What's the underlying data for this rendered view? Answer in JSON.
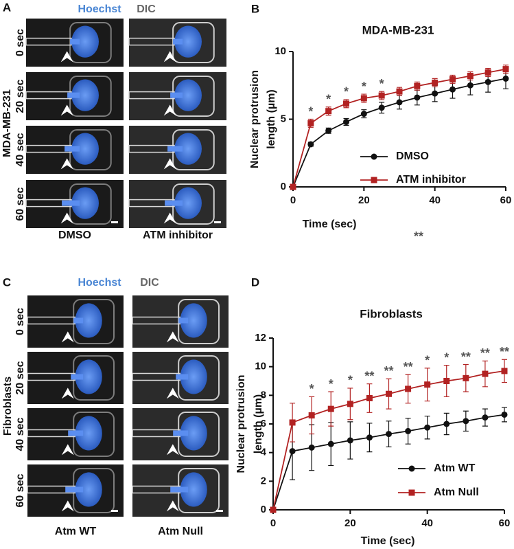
{
  "figure": {
    "panel_a": {
      "label": "A",
      "channels": [
        "Hoechst",
        "DIC"
      ],
      "times": [
        "0 sec",
        "20 sec",
        "40 sec",
        "60 sec"
      ],
      "cell_line": "MDA-MB-231",
      "conditions": [
        "DMSO",
        "ATM inhibitor"
      ]
    },
    "panel_c": {
      "label": "C",
      "channels": [
        "Hoechst",
        "DIC"
      ],
      "times": [
        "0 sec",
        "20 sec",
        "40 sec",
        "60 sec"
      ],
      "cell_line": "Fibroblasts",
      "conditions": [
        "Atm WT",
        "Atm Null"
      ]
    }
  },
  "chart_data": [
    {
      "type": "line",
      "panel_label": "B",
      "title": "MDA-MB-231",
      "xlabel": "Time (sec)",
      "ylabel": [
        "Nuclear protrusion",
        "length (µm)"
      ],
      "x": [
        0,
        5,
        10,
        15,
        20,
        25,
        30,
        35,
        40,
        45,
        50,
        55,
        60
      ],
      "series": [
        {
          "name": "DMSO",
          "color": "#111111",
          "marker": "circle",
          "values": [
            0,
            3.15,
            4.15,
            4.8,
            5.4,
            5.85,
            6.25,
            6.6,
            6.9,
            7.2,
            7.5,
            7.75,
            8.0
          ],
          "errors": [
            0,
            0.15,
            0.2,
            0.25,
            0.3,
            0.4,
            0.5,
            0.55,
            0.6,
            0.65,
            0.7,
            0.75,
            0.75
          ]
        },
        {
          "name": "ATM inhibitor",
          "color": "#b22222",
          "marker": "square",
          "values": [
            0,
            4.7,
            5.6,
            6.15,
            6.55,
            6.75,
            7.05,
            7.45,
            7.7,
            7.95,
            8.2,
            8.45,
            8.7
          ],
          "errors": [
            0,
            0.3,
            0.3,
            0.3,
            0.3,
            0.3,
            0.3,
            0.3,
            0.3,
            0.3,
            0.3,
            0.3,
            0.3
          ]
        }
      ],
      "xlim": [
        0,
        60
      ],
      "xticks": [
        0,
        20,
        40,
        60
      ],
      "ylim": [
        0,
        10
      ],
      "yticks": [
        0,
        5,
        10
      ],
      "annotations": [
        {
          "x": 5,
          "text": "*"
        },
        {
          "x": 10,
          "text": "*"
        },
        {
          "x": 15,
          "text": "*"
        },
        {
          "x": 20,
          "text": "*"
        },
        {
          "x": 25,
          "text": "*"
        }
      ],
      "stray_annotation": "**"
    },
    {
      "type": "line",
      "panel_label": "D",
      "title": "Fibroblasts",
      "xlabel": "Time (sec)",
      "ylabel": [
        "Nuclear protrusion",
        "length (µm)"
      ],
      "x": [
        0,
        5,
        10,
        15,
        20,
        25,
        30,
        35,
        40,
        45,
        50,
        55,
        60
      ],
      "series": [
        {
          "name": "Atm WT",
          "color": "#111111",
          "marker": "circle",
          "values": [
            0,
            4.1,
            4.35,
            4.6,
            4.85,
            5.05,
            5.3,
            5.5,
            5.75,
            6.0,
            6.2,
            6.45,
            6.65
          ],
          "errors": [
            0,
            2.0,
            1.6,
            1.5,
            1.3,
            1.0,
            0.9,
            0.9,
            0.8,
            0.75,
            0.7,
            0.6,
            0.5
          ]
        },
        {
          "name": "Atm Null",
          "color": "#b22222",
          "marker": "square",
          "values": [
            0,
            6.1,
            6.6,
            7.05,
            7.4,
            7.8,
            8.1,
            8.45,
            8.75,
            9.0,
            9.2,
            9.5,
            9.7
          ],
          "errors": [
            0,
            1.35,
            1.3,
            1.2,
            1.1,
            1.0,
            1.05,
            1.0,
            1.15,
            1.1,
            0.95,
            0.9,
            0.8
          ]
        }
      ],
      "xlim": [
        0,
        60
      ],
      "xticks": [
        0,
        20,
        40,
        60
      ],
      "ylim": [
        0,
        12
      ],
      "yticks": [
        0,
        2,
        4,
        6,
        8,
        10,
        12
      ],
      "annotations": [
        {
          "x": 10,
          "text": "*"
        },
        {
          "x": 15,
          "text": "*"
        },
        {
          "x": 20,
          "text": "*"
        },
        {
          "x": 25,
          "text": "**"
        },
        {
          "x": 30,
          "text": "**"
        },
        {
          "x": 35,
          "text": "**"
        },
        {
          "x": 40,
          "text": "*"
        },
        {
          "x": 45,
          "text": "*"
        },
        {
          "x": 50,
          "text": "**"
        },
        {
          "x": 55,
          "text": "**"
        },
        {
          "x": 60,
          "text": "**"
        }
      ]
    }
  ]
}
